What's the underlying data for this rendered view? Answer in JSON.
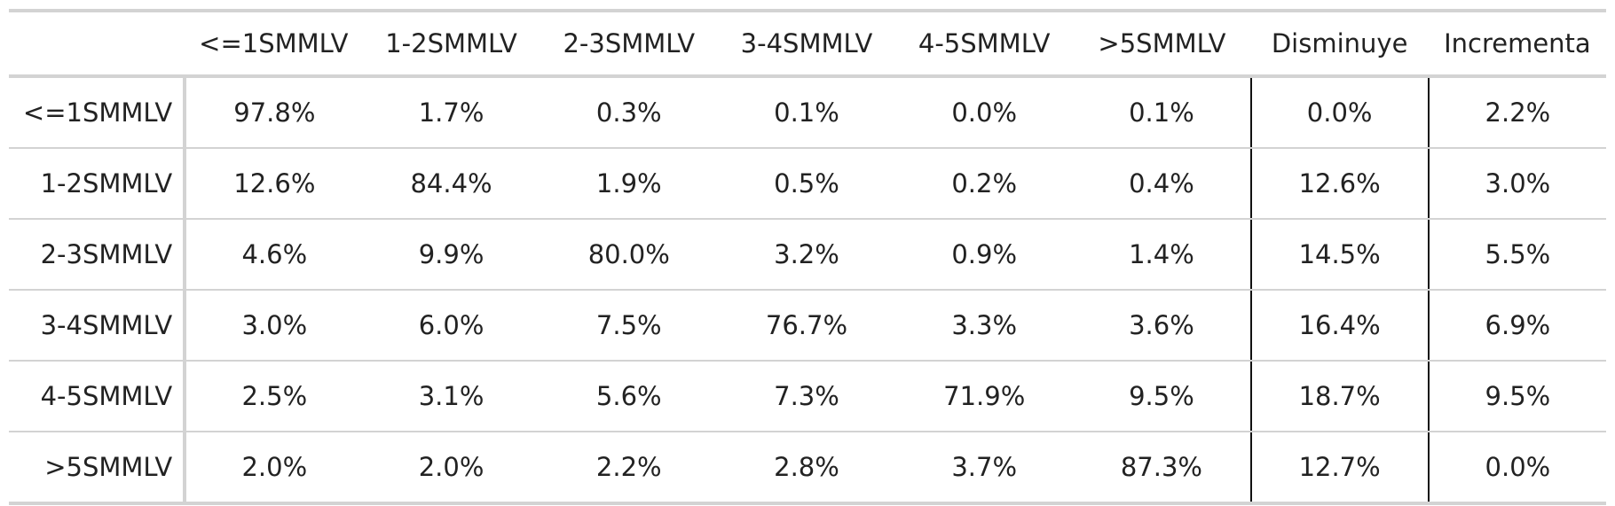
{
  "chart_data": {
    "type": "table",
    "column_headers": [
      "",
      "<=1SMMLV",
      "1-2SMMLV",
      "2-3SMMLV",
      "3-4SMMLV",
      "4-5SMMLV",
      ">5SMMLV",
      "Disminuye",
      "Incrementa"
    ],
    "rows": [
      {
        "label": "<=1SMMLV",
        "values": [
          "97.8%",
          "1.7%",
          "0.3%",
          "0.1%",
          "0.0%",
          "0.1%",
          "0.0%",
          "2.2%"
        ]
      },
      {
        "label": "1-2SMMLV",
        "values": [
          "12.6%",
          "84.4%",
          "1.9%",
          "0.5%",
          "0.2%",
          "0.4%",
          "12.6%",
          "3.0%"
        ]
      },
      {
        "label": "2-3SMMLV",
        "values": [
          "4.6%",
          "9.9%",
          "80.0%",
          "3.2%",
          "0.9%",
          "1.4%",
          "14.5%",
          "5.5%"
        ]
      },
      {
        "label": "3-4SMMLV",
        "values": [
          "3.0%",
          "6.0%",
          "7.5%",
          "76.7%",
          "3.3%",
          "3.6%",
          "16.4%",
          "6.9%"
        ]
      },
      {
        "label": "4-5SMMLV",
        "values": [
          "2.5%",
          "3.1%",
          "5.6%",
          "7.3%",
          "71.9%",
          "9.5%",
          "18.7%",
          "9.5%"
        ]
      },
      {
        "label": ">5SMMLV",
        "values": [
          "2.0%",
          "2.0%",
          "2.2%",
          "2.8%",
          "3.7%",
          "87.3%",
          "12.7%",
          "0.0%"
        ]
      }
    ]
  }
}
